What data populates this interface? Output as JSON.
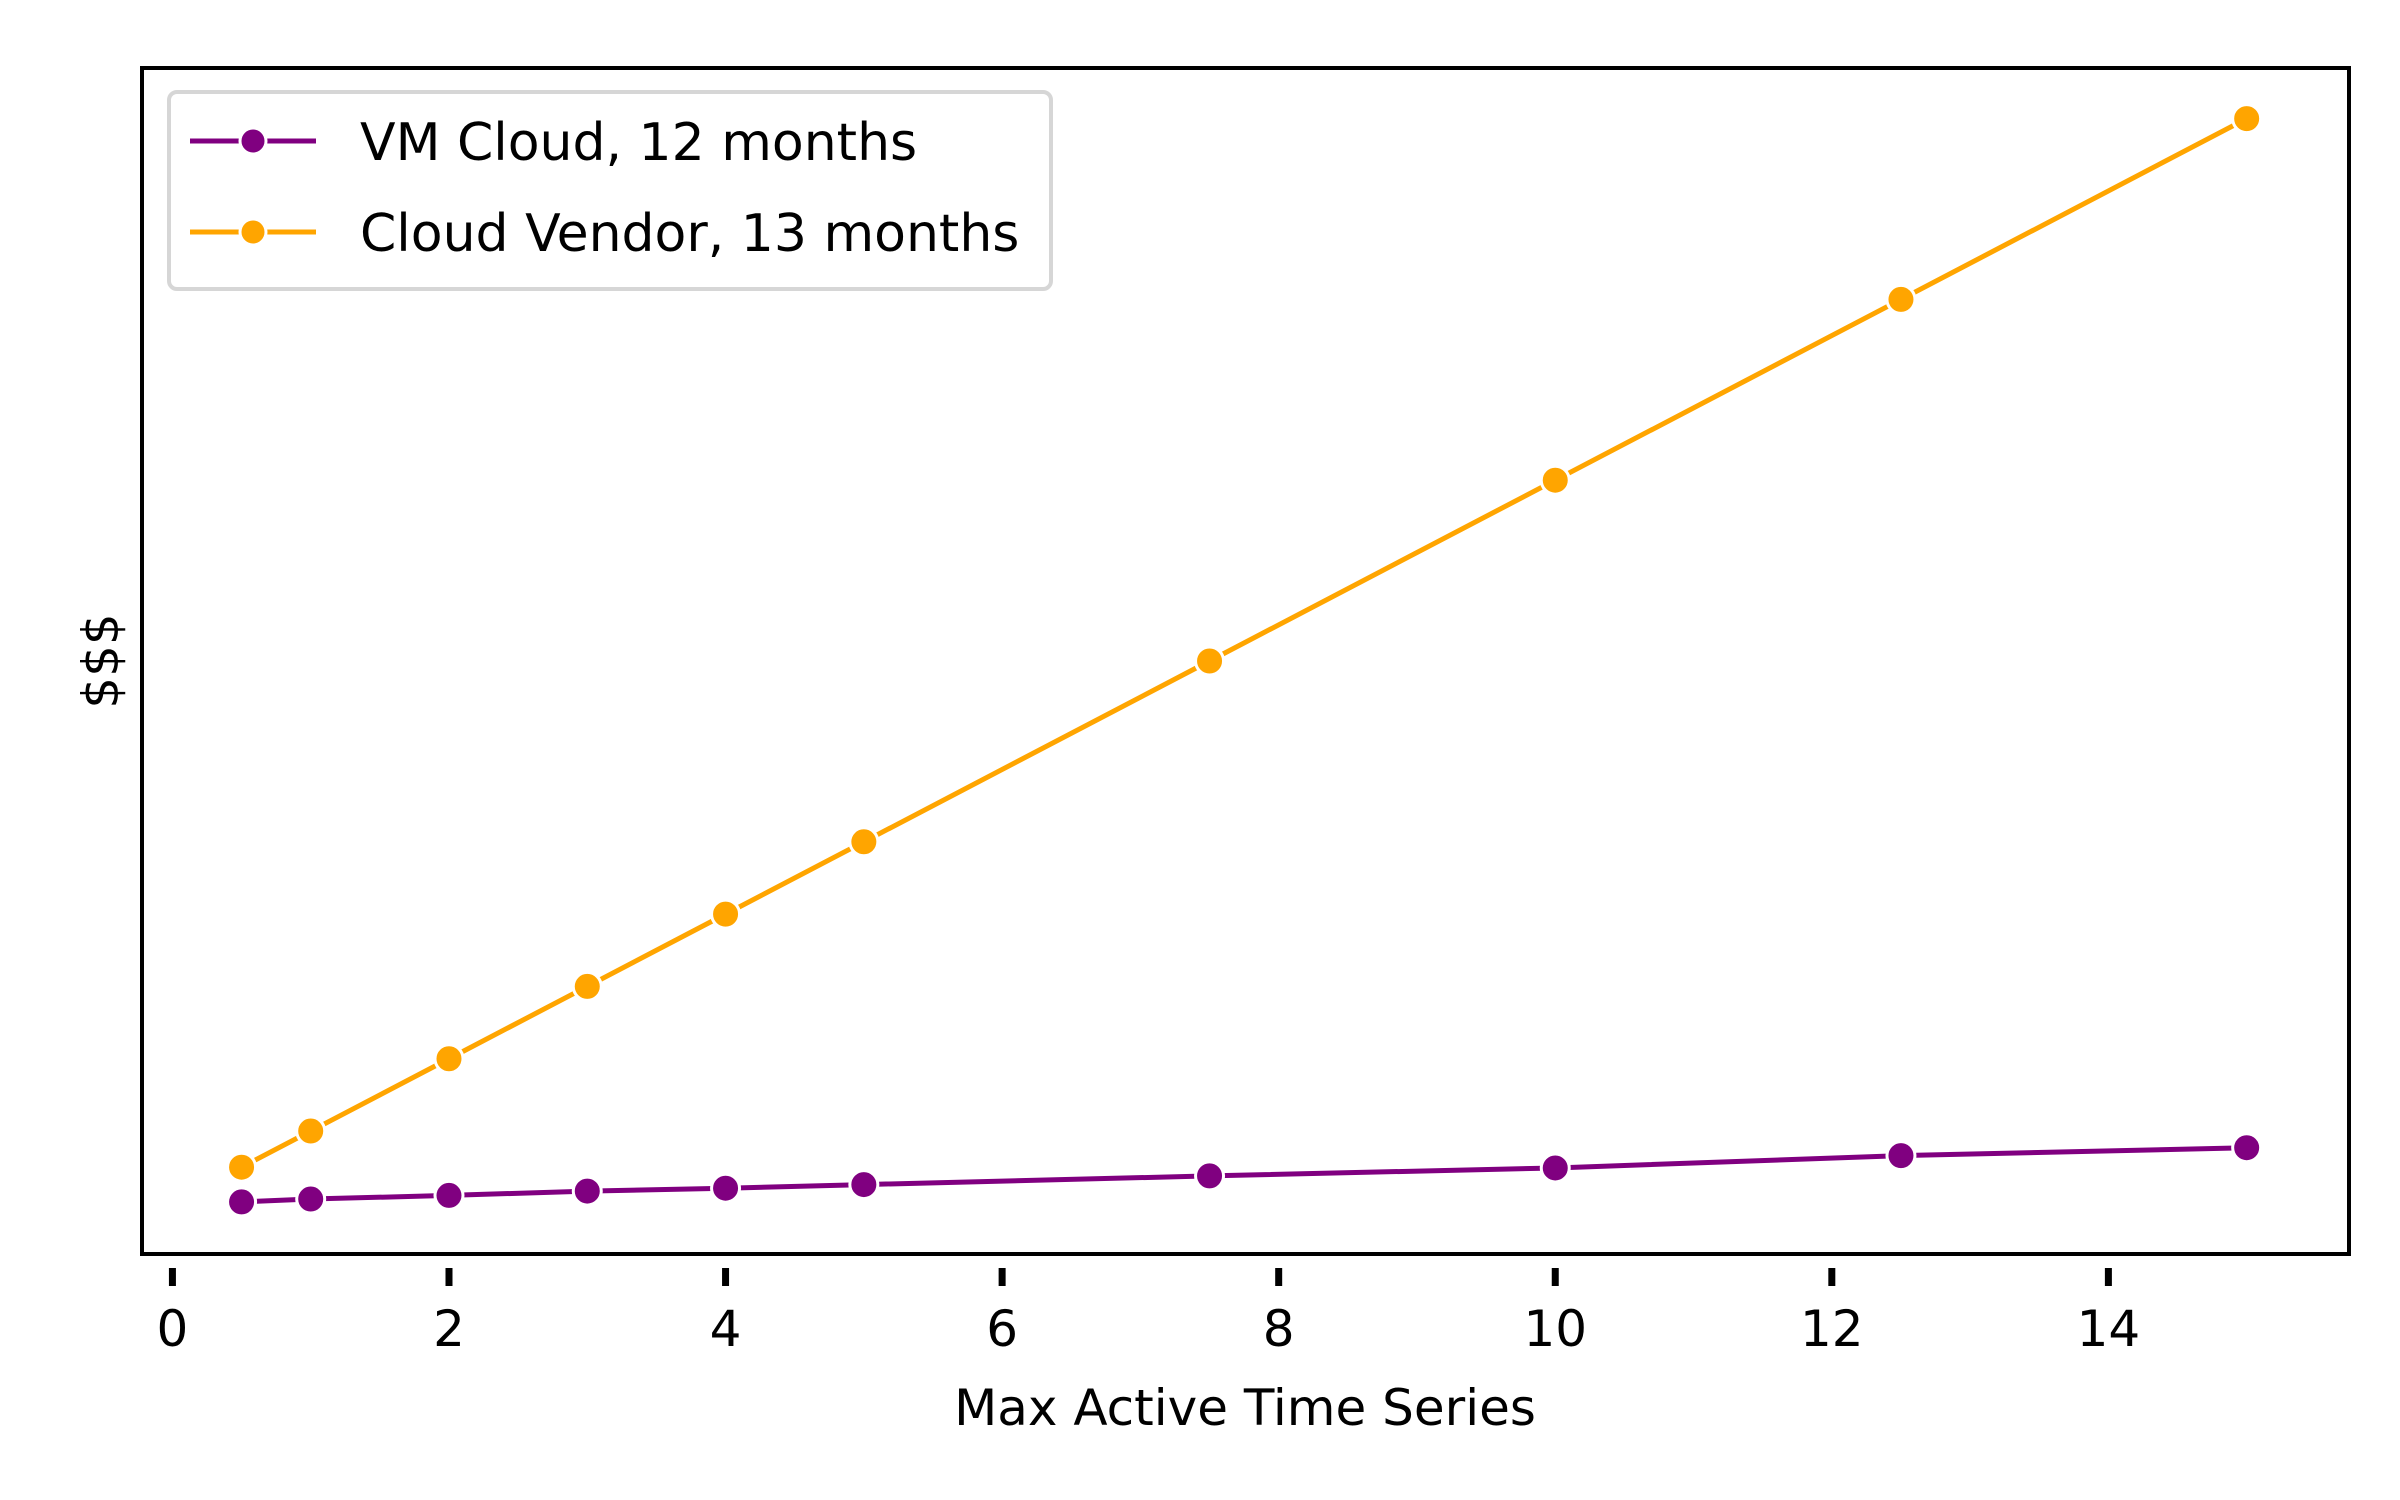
{
  "chart_data": {
    "type": "line",
    "title": "",
    "xlabel": "Max Active Time Series",
    "ylabel": "$$$",
    "xlim": [
      -0.22,
      15.74
    ],
    "ylim": [
      -7,
      157
    ],
    "xticks": [
      0,
      2,
      4,
      6,
      8,
      10,
      12,
      14
    ],
    "xtick_labels": [
      "0",
      "2",
      "4",
      "6",
      "8",
      "10",
      "12",
      "14"
    ],
    "yticks": [],
    "grid": false,
    "legend_position": "top-left",
    "x": [
      0.5,
      1,
      2,
      3,
      4,
      5,
      7.5,
      10,
      12.5,
      15
    ],
    "series": [
      {
        "name": "VM Cloud, 12 months",
        "color": "#800080",
        "values": [
          0.2,
          0.6,
          1.1,
          1.7,
          2.1,
          2.6,
          3.8,
          4.9,
          6.6,
          7.7
        ]
      },
      {
        "name": "Cloud Vendor, 13 months",
        "color": "#FFA500",
        "values": [
          5,
          10,
          20,
          30,
          40,
          50,
          75,
          100,
          125,
          150
        ]
      }
    ]
  }
}
